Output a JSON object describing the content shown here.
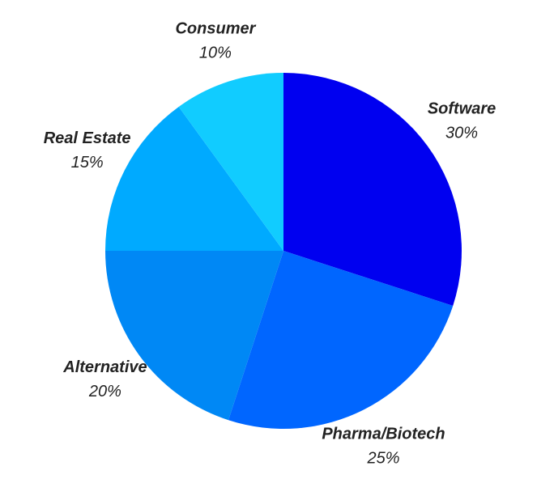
{
  "chart_data": {
    "type": "pie",
    "categories": [
      "Software",
      "Pharma/Biotech",
      "Alternative",
      "Real Estate",
      "Consumer"
    ],
    "values": [
      30,
      25,
      20,
      15,
      10
    ],
    "value_labels": [
      "30%",
      "25%",
      "20%",
      "15%",
      "10%"
    ],
    "colors": [
      "#0000f0",
      "#0066ff",
      "#0088f5",
      "#00aaff",
      "#11ccff"
    ]
  }
}
